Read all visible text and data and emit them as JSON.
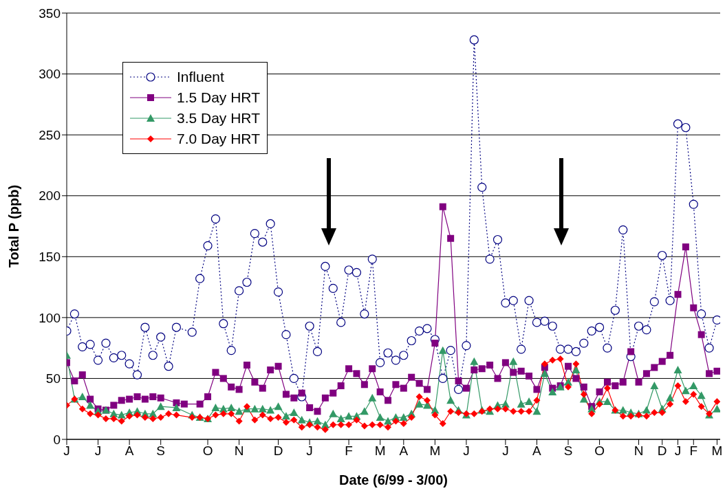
{
  "chart_data": {
    "type": "line",
    "xlabel": "Date (6/99 - 3/00)",
    "ylabel": "Total P (ppb)",
    "categories": [
      "J",
      null,
      null,
      null,
      "J",
      null,
      null,
      null,
      "A",
      null,
      null,
      null,
      "S",
      null,
      null,
      null,
      null,
      null,
      "O",
      null,
      null,
      null,
      "N",
      null,
      null,
      null,
      null,
      "D",
      null,
      null,
      null,
      "J",
      null,
      null,
      null,
      null,
      "F",
      null,
      null,
      null,
      "M",
      null,
      null,
      "A",
      null,
      null,
      null,
      "M",
      null,
      null,
      null,
      "J",
      null,
      null,
      null,
      null,
      "J",
      null,
      null,
      null,
      "A",
      null,
      null,
      null,
      "S",
      null,
      null,
      null,
      "O",
      null,
      null,
      null,
      null,
      "N",
      null,
      null,
      "D",
      null,
      "J",
      null,
      "F",
      null,
      null,
      "M"
    ],
    "ylim": [
      0,
      350
    ],
    "yticks": [
      0,
      50,
      100,
      150,
      200,
      250,
      300,
      350
    ],
    "grid": "y",
    "legend": "top left",
    "series": [
      {
        "name": "Influent",
        "color": "#000080",
        "marker": "circle",
        "line_style": "dotted",
        "values": [
          89,
          103,
          76,
          78,
          65,
          79,
          67,
          69,
          62,
          53,
          92,
          69,
          84,
          60,
          92,
          null,
          88,
          132,
          159,
          181,
          95,
          73,
          122,
          129,
          169,
          162,
          177,
          121,
          86,
          50,
          35,
          93,
          72,
          142,
          124,
          96,
          139,
          137,
          103,
          148,
          63,
          71,
          65,
          69,
          81,
          89,
          91,
          82,
          50,
          73,
          41,
          77,
          328,
          207,
          148,
          164,
          112,
          114,
          74,
          114,
          96,
          97,
          93,
          74,
          74,
          72,
          79,
          89,
          92,
          75,
          106,
          172,
          68,
          93,
          90,
          113,
          151,
          114,
          259,
          256,
          193,
          103,
          75,
          98
        ]
      },
      {
        "name": "1.5 Day HRT",
        "color": "#800080",
        "marker": "square",
        "line_style": "solid",
        "values": [
          63,
          48,
          53,
          33,
          25,
          24,
          28,
          32,
          33,
          35,
          33,
          35,
          34,
          null,
          30,
          29,
          null,
          29,
          35,
          55,
          50,
          43,
          41,
          61,
          47,
          42,
          57,
          60,
          37,
          34,
          38,
          26,
          23,
          34,
          38,
          44,
          58,
          54,
          45,
          58,
          39,
          32,
          45,
          42,
          51,
          46,
          41,
          79,
          191,
          165,
          48,
          42,
          57,
          58,
          61,
          50,
          63,
          55,
          56,
          52,
          41,
          59,
          42,
          44,
          60,
          50,
          43,
          27,
          39,
          47,
          44,
          47,
          72,
          47,
          54,
          59,
          64,
          69,
          119,
          158,
          108,
          86,
          54,
          56
        ]
      },
      {
        "name": "3.5 Day HRT",
        "color": "#339966",
        "marker": "triangle",
        "line_style": "solid",
        "values": [
          69,
          33,
          35,
          28,
          23,
          24,
          21,
          20,
          22,
          23,
          21,
          21,
          27,
          null,
          26,
          null,
          20,
          18,
          17,
          26,
          25,
          26,
          23,
          25,
          25,
          25,
          24,
          27,
          19,
          22,
          16,
          14,
          15,
          12,
          21,
          17,
          19,
          19,
          23,
          34,
          18,
          15,
          18,
          18,
          21,
          29,
          28,
          24,
          73,
          32,
          24,
          20,
          64,
          24,
          23,
          28,
          29,
          64,
          29,
          31,
          23,
          54,
          39,
          43,
          47,
          57,
          33,
          25,
          31,
          31,
          24,
          24,
          22,
          21,
          24,
          44,
          25,
          34,
          57,
          40,
          44,
          36,
          20,
          25
        ]
      },
      {
        "name": "7.0 Day HRT",
        "color": "#ff0000",
        "marker": "diamond",
        "line_style": "solid",
        "values": [
          28,
          33,
          25,
          21,
          20,
          17,
          17,
          15,
          19,
          20,
          18,
          17,
          18,
          21,
          20,
          null,
          18,
          18,
          17,
          20,
          21,
          21,
          15,
          27,
          16,
          20,
          17,
          18,
          14,
          16,
          10,
          12,
          10,
          8,
          12,
          12,
          12,
          16,
          11,
          12,
          12,
          10,
          15,
          13,
          18,
          35,
          32,
          20,
          13,
          23,
          22,
          21,
          21,
          23,
          25,
          25,
          25,
          23,
          23,
          23,
          32,
          62,
          65,
          66,
          43,
          62,
          37,
          21,
          29,
          42,
          24,
          19,
          19,
          20,
          19,
          22,
          22,
          29,
          44,
          31,
          37,
          27,
          21,
          31
        ]
      }
    ]
  }
}
